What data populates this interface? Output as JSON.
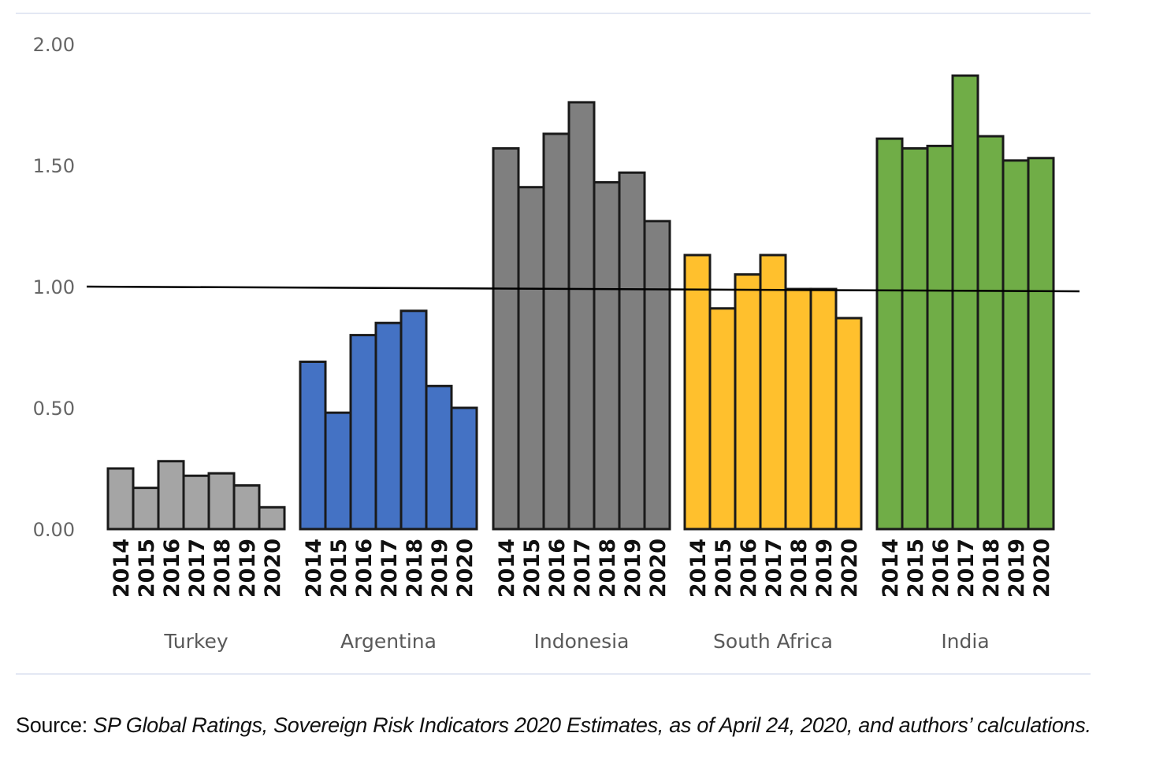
{
  "chart_data": {
    "type": "bar",
    "title": "",
    "xlabel": "",
    "ylabel": "",
    "ylim": [
      0,
      2
    ],
    "yticks": [
      "0.00",
      "0.50",
      "1.00",
      "1.50",
      "2.00"
    ],
    "reference_line": 1.0,
    "grid": false,
    "groups": [
      {
        "name": "Turkey",
        "color": "#a5a5a5",
        "years": [
          "2014",
          "2015",
          "2016",
          "2017",
          "2018",
          "2019",
          "2020"
        ],
        "values": [
          0.25,
          0.17,
          0.28,
          0.22,
          0.23,
          0.18,
          0.09
        ]
      },
      {
        "name": "Argentina",
        "color": "#4472c4",
        "years": [
          "2014",
          "2015",
          "2016",
          "2017",
          "2018",
          "2019",
          "2020"
        ],
        "values": [
          0.69,
          0.48,
          0.8,
          0.85,
          0.9,
          0.59,
          0.5
        ]
      },
      {
        "name": "Indonesia",
        "color": "#7f7f7f",
        "years": [
          "2014",
          "2015",
          "2016",
          "2017",
          "2018",
          "2019",
          "2020"
        ],
        "values": [
          1.57,
          1.41,
          1.63,
          1.76,
          1.43,
          1.47,
          1.27
        ]
      },
      {
        "name": "South Africa",
        "color": "#ffc02d",
        "years": [
          "2014",
          "2015",
          "2016",
          "2017",
          "2018",
          "2019",
          "2020"
        ],
        "values": [
          1.13,
          0.91,
          1.05,
          1.13,
          0.99,
          0.99,
          0.87
        ]
      },
      {
        "name": "India",
        "color": "#70ad47",
        "years": [
          "2014",
          "2015",
          "2016",
          "2017",
          "2018",
          "2019",
          "2020"
        ],
        "values": [
          1.61,
          1.57,
          1.58,
          1.87,
          1.62,
          1.52,
          1.53
        ]
      }
    ]
  },
  "source": {
    "prefix": "Source: ",
    "text": "SP Global Ratings, Sovereign Risk Indicators 2020 Estimates, as of April 24, 2020, and authors’ calculations."
  }
}
